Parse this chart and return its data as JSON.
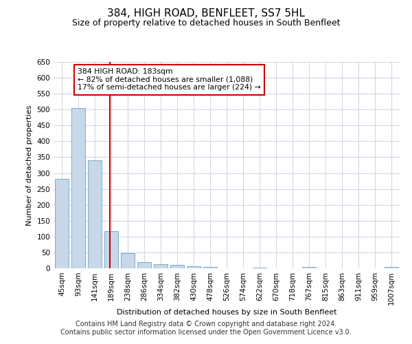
{
  "title": "384, HIGH ROAD, BENFLEET, SS7 5HL",
  "subtitle": "Size of property relative to detached houses in South Benfleet",
  "xlabel": "Distribution of detached houses by size in South Benfleet",
  "ylabel": "Number of detached properties",
  "bar_color": "#c8d8ea",
  "bar_edge_color": "#7aaac8",
  "categories": [
    "45sqm",
    "93sqm",
    "141sqm",
    "189sqm",
    "238sqm",
    "286sqm",
    "334sqm",
    "382sqm",
    "430sqm",
    "478sqm",
    "526sqm",
    "574sqm",
    "622sqm",
    "670sqm",
    "718sqm",
    "767sqm",
    "815sqm",
    "863sqm",
    "911sqm",
    "959sqm",
    "1007sqm"
  ],
  "values": [
    282,
    505,
    340,
    118,
    47,
    20,
    13,
    10,
    7,
    4,
    0,
    0,
    3,
    0,
    0,
    5,
    0,
    0,
    0,
    0,
    4
  ],
  "vline_pos": 2.925,
  "vline_color": "#cc0000",
  "annotation_text": "384 HIGH ROAD: 183sqm\n← 82% of detached houses are smaller (1,088)\n17% of semi-detached houses are larger (224) →",
  "annotation_box_color": "#ffffff",
  "annotation_box_edge_color": "#cc0000",
  "footer": "Contains HM Land Registry data © Crown copyright and database right 2024.\nContains public sector information licensed under the Open Government Licence v3.0.",
  "ylim": [
    0,
    650
  ],
  "yticks": [
    0,
    50,
    100,
    150,
    200,
    250,
    300,
    350,
    400,
    450,
    500,
    550,
    600,
    650
  ],
  "background_color": "#ffffff",
  "grid_color": "#d0d8e4",
  "title_fontsize": 11,
  "subtitle_fontsize": 9,
  "axis_fontsize": 8,
  "tick_fontsize": 7.5,
  "footer_fontsize": 7
}
